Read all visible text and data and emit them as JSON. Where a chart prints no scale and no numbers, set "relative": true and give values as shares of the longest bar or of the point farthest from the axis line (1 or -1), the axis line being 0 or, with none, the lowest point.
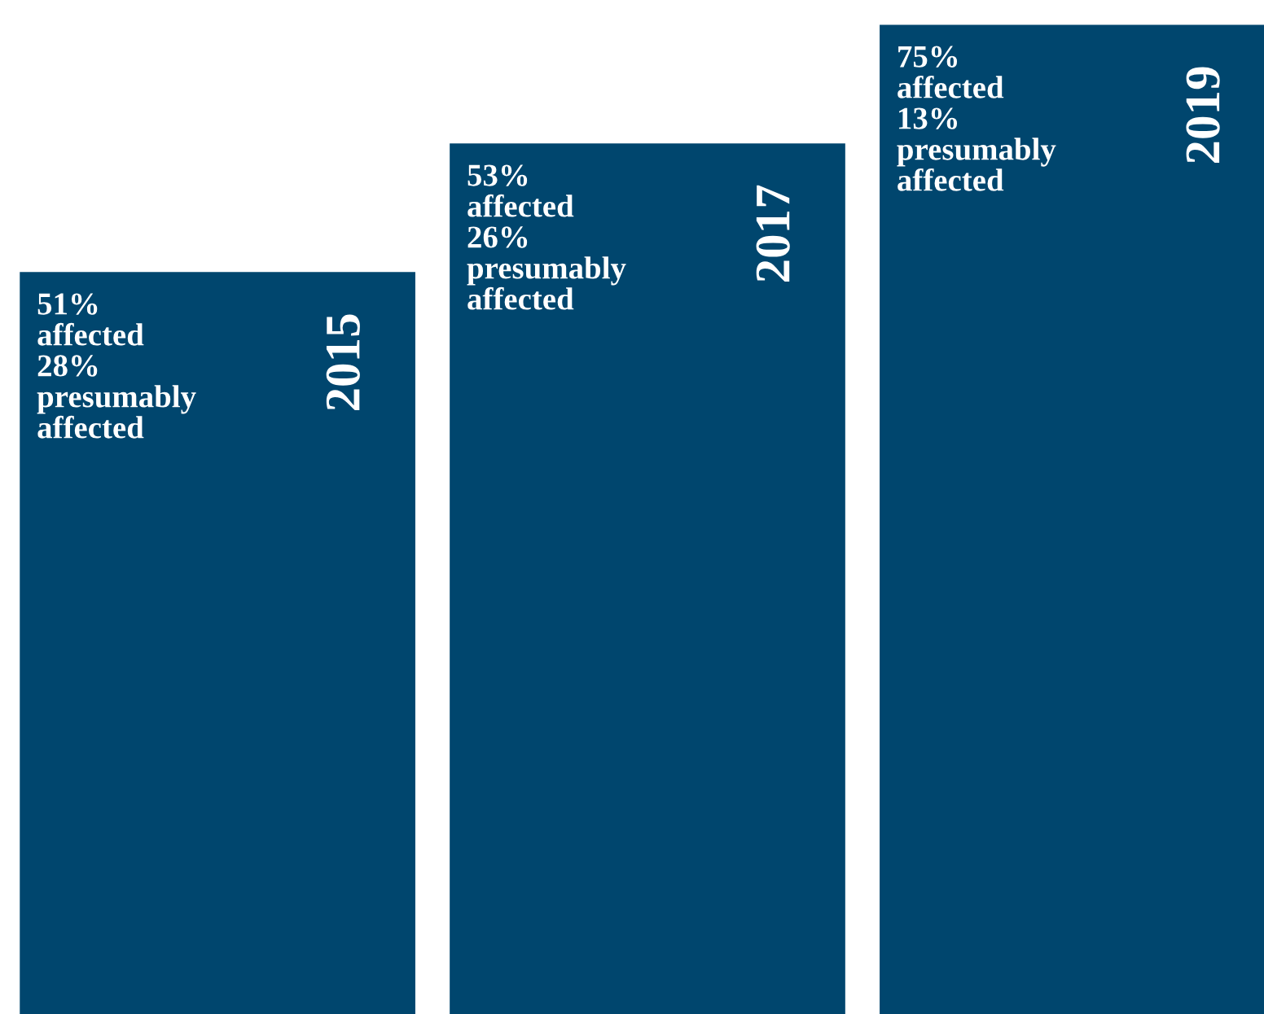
{
  "chart_data": {
    "type": "bar",
    "relative": true,
    "categories": [
      "2015",
      "2017",
      "2019"
    ],
    "values": [
      0.75,
      0.88,
      1.0
    ],
    "color": "#00466e",
    "annotations": [
      "51%\naffected\n28%\npresumably\naffected",
      "53%\naffected\n26%\npresumably\naffected",
      "75%\naffected\n13%\npresumably\naffected"
    ]
  }
}
